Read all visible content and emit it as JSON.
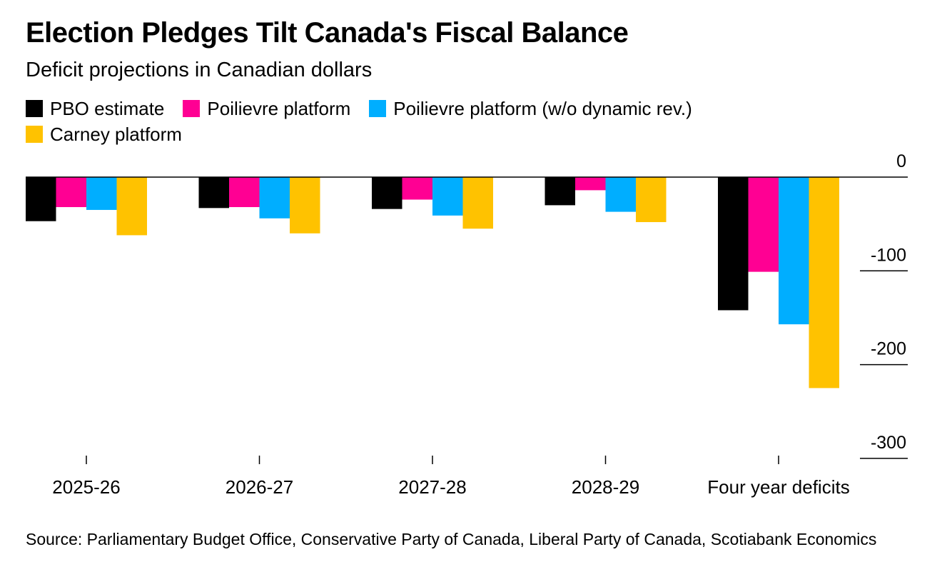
{
  "title": "Election Pledges Tilt Canada's Fiscal Balance",
  "subtitle": "Deficit projections in Canadian dollars",
  "source": "Source: Parliamentary Budget Office, Conservative Party of Canada, Liberal Party of Canada, Scotiabank Economics",
  "chart_data": {
    "type": "bar",
    "title": "Election Pledges Tilt Canada's Fiscal Balance",
    "subtitle": "Deficit projections in Canadian dollars",
    "categories": [
      "2025-26",
      "2026-27",
      "2027-28",
      "2028-29",
      "Four year deficits"
    ],
    "series": [
      {
        "name": "PBO estimate",
        "color": "#000000",
        "values": [
          -47,
          -33,
          -34,
          -30,
          -142
        ]
      },
      {
        "name": "Poilievre platform",
        "color": "#ff0093",
        "values": [
          -32,
          -32,
          -24,
          -14,
          -101
        ]
      },
      {
        "name": "Poilievre platform (w/o dynamic rev.)",
        "color": "#00aeff",
        "values": [
          -35,
          -44,
          -41,
          -37,
          -157
        ]
      },
      {
        "name": "Carney platform",
        "color": "#ffc200",
        "values": [
          -62,
          -60,
          -55,
          -48,
          -225
        ]
      }
    ],
    "yticks": [
      0,
      -100,
      -200,
      -300
    ],
    "ylim": [
      -300,
      0
    ],
    "legend_position": "top-left",
    "grid": false
  }
}
